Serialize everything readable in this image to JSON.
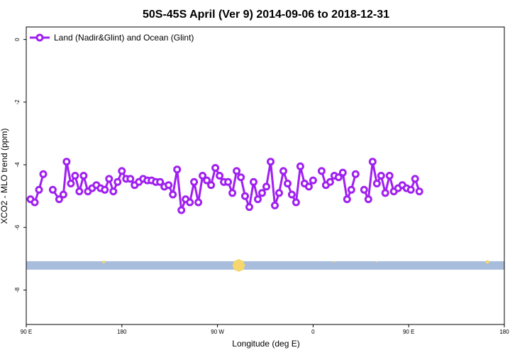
{
  "chart_data": {
    "type": "line",
    "title": "50S-45S April (Ver 9)   2014-09-06 to 2018-12-31",
    "xlabel": "Longitude (deg E)",
    "ylabel": "XCO2 - MLO trend (ppm)",
    "xlim": [
      90,
      450
    ],
    "ylim": [
      -9.1,
      0.4
    ],
    "x_ticks": [
      {
        "value": 90,
        "label": "90 E"
      },
      {
        "value": 180,
        "label": "180"
      },
      {
        "value": 270,
        "label": "90 W"
      },
      {
        "value": 360,
        "label": "0"
      },
      {
        "value": 450,
        "label": "90 E"
      },
      {
        "value": 540,
        "label": "180"
      }
    ],
    "y_ticks": [
      {
        "value": 0,
        "label": "0"
      },
      {
        "value": -2,
        "label": "-2"
      },
      {
        "value": -4,
        "label": "-4"
      },
      {
        "value": -6,
        "label": "-6"
      },
      {
        "value": -8,
        "label": "-8"
      }
    ],
    "x_display_max": 540,
    "legend": {
      "position": "top-left"
    },
    "line_color": "#a020f0",
    "land_band": {
      "y_from": -7.08,
      "y_to": -7.35,
      "color": "#a8bddc"
    },
    "land_marks": {
      "color": "#f5d76e",
      "points": [
        {
          "x": 163,
          "size": 4
        },
        {
          "x": 290,
          "size": 11
        },
        {
          "x": 380,
          "size": 2
        },
        {
          "x": 420,
          "size": 2
        },
        {
          "x": 524,
          "size": 5
        }
      ]
    },
    "series": [
      {
        "name": "Land (Nadir&Glint) and Ocean (Glint)",
        "segments": [
          [
            [
              94,
              -5.1
            ],
            [
              98,
              -5.2
            ],
            [
              102,
              -4.8
            ],
            [
              106,
              -4.3
            ]
          ],
          [
            [
              115,
              -4.8
            ],
            [
              121,
              -5.1
            ],
            [
              125,
              -4.95
            ],
            [
              128,
              -3.9
            ],
            [
              132,
              -4.6
            ],
            [
              136,
              -4.35
            ],
            [
              140,
              -4.85
            ],
            [
              144,
              -4.35
            ],
            [
              148,
              -4.85
            ],
            [
              152,
              -4.75
            ],
            [
              156,
              -4.65
            ],
            [
              160,
              -4.75
            ],
            [
              164,
              -4.8
            ],
            [
              168,
              -4.45
            ],
            [
              172,
              -4.85
            ],
            [
              176,
              -4.55
            ],
            [
              180,
              -4.2
            ],
            [
              184,
              -4.45
            ],
            [
              188,
              -4.45
            ],
            [
              192,
              -4.65
            ],
            [
              196,
              -4.55
            ],
            [
              200,
              -4.45
            ],
            [
              204,
              -4.5
            ],
            [
              208,
              -4.5
            ],
            [
              212,
              -4.55
            ],
            [
              216,
              -4.55
            ],
            [
              220,
              -4.7
            ],
            [
              224,
              -4.65
            ],
            [
              228,
              -4.95
            ],
            [
              232,
              -4.15
            ],
            [
              236,
              -5.45
            ],
            [
              240,
              -5.1
            ],
            [
              244,
              -5.2
            ],
            [
              248,
              -4.55
            ],
            [
              252,
              -5.2
            ],
            [
              256,
              -4.35
            ],
            [
              260,
              -4.5
            ],
            [
              264,
              -4.65
            ],
            [
              268,
              -4.1
            ],
            [
              272,
              -4.35
            ],
            [
              276,
              -4.55
            ],
            [
              280,
              -4.55
            ],
            [
              284,
              -4.9
            ],
            [
              288,
              -4.2
            ],
            [
              292,
              -4.4
            ],
            [
              296,
              -5.0
            ],
            [
              300,
              -5.35
            ],
            [
              304,
              -4.55
            ],
            [
              308,
              -5.1
            ],
            [
              312,
              -4.9
            ],
            [
              316,
              -4.7
            ],
            [
              320,
              -3.9
            ],
            [
              324,
              -5.3
            ],
            [
              328,
              -4.9
            ],
            [
              332,
              -4.2
            ],
            [
              336,
              -4.6
            ],
            [
              340,
              -4.95
            ],
            [
              344,
              -5.2
            ],
            [
              348,
              -4.05
            ],
            [
              352,
              -4.6
            ],
            [
              356,
              -4.7
            ],
            [
              360,
              -4.5
            ]
          ],
          [
            [
              368,
              -4.2
            ],
            [
              372,
              -4.65
            ],
            [
              376,
              -4.55
            ],
            [
              380,
              -4.35
            ],
            [
              384,
              -4.4
            ],
            [
              388,
              -4.25
            ],
            [
              392,
              -5.1
            ],
            [
              396,
              -4.8
            ],
            [
              400,
              -4.3
            ]
          ],
          [
            [
              408,
              -4.8
            ],
            [
              412,
              -5.1
            ],
            [
              416,
              -3.9
            ],
            [
              420,
              -4.6
            ],
            [
              424,
              -4.35
            ],
            [
              428,
              -4.9
            ],
            [
              432,
              -4.35
            ],
            [
              436,
              -4.85
            ],
            [
              440,
              -4.75
            ],
            [
              444,
              -4.65
            ],
            [
              448,
              -4.75
            ],
            [
              452,
              -4.8
            ],
            [
              456,
              -4.45
            ],
            [
              460,
              -4.85
            ]
          ]
        ]
      }
    ]
  }
}
